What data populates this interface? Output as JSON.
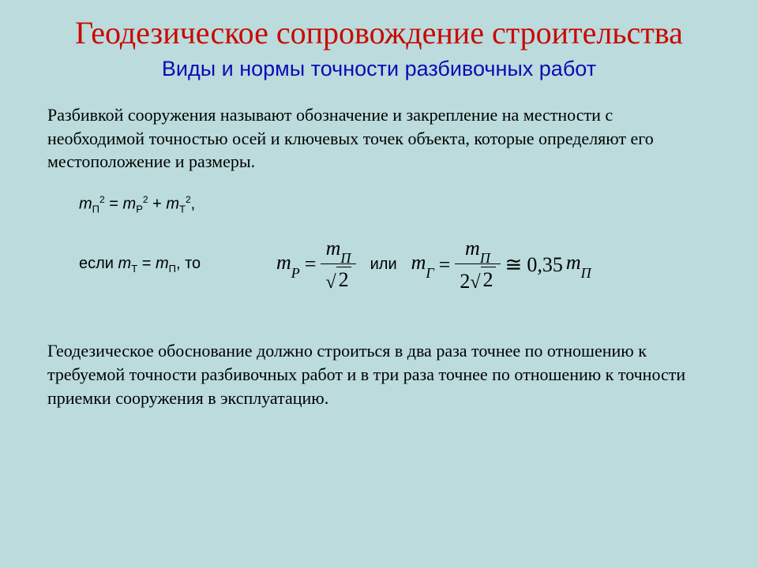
{
  "colors": {
    "background": "#bbdbdd",
    "title": "#c90900",
    "subtitle": "#0b0bb5",
    "body": "#000000"
  },
  "title": "Геодезическое сопровождение строительства",
  "subtitle": "Виды и нормы точности разбивочных работ",
  "para1": "Разбивкой сооружения называют обозначение и закрепление на местности с необходимой точностью осей и ключевых точек объекта, которые определяют его местоположение и размеры.",
  "equation1": {
    "lhs_var": "m",
    "lhs_sub": "П",
    "lhs_sup": "2",
    "r1_var": "m",
    "r1_sub": "Р",
    "r1_sup": "2",
    "r2_var": "m",
    "r2_sub": "T",
    "r2_sup": "2",
    "trail": ","
  },
  "condition": {
    "prefix": "если ",
    "a_var": "m",
    "a_sub": "T",
    "b_var": "m",
    "b_sub": "П",
    "suffix": ", то"
  },
  "formula_a": {
    "lhs_var": "m",
    "lhs_sub": "P",
    "num_var": "m",
    "num_sub": "П",
    "den_pre": "",
    "den_root": "2"
  },
  "connector": "или",
  "formula_b": {
    "lhs_var": "m",
    "lhs_sub": "Г",
    "num_var": "m",
    "num_sub": "П",
    "den_pre": "2",
    "den_root": "2",
    "approx_op": "≅",
    "coef": "0,35",
    "tail_var": "m",
    "tail_sub": "П"
  },
  "para2": "Геодезическое обоснование должно строиться в два раза точнее по отношению к требуемой точности разбивочных работ и в три раза точнее по отношению к точности приемки сооружения в эксплуатацию."
}
